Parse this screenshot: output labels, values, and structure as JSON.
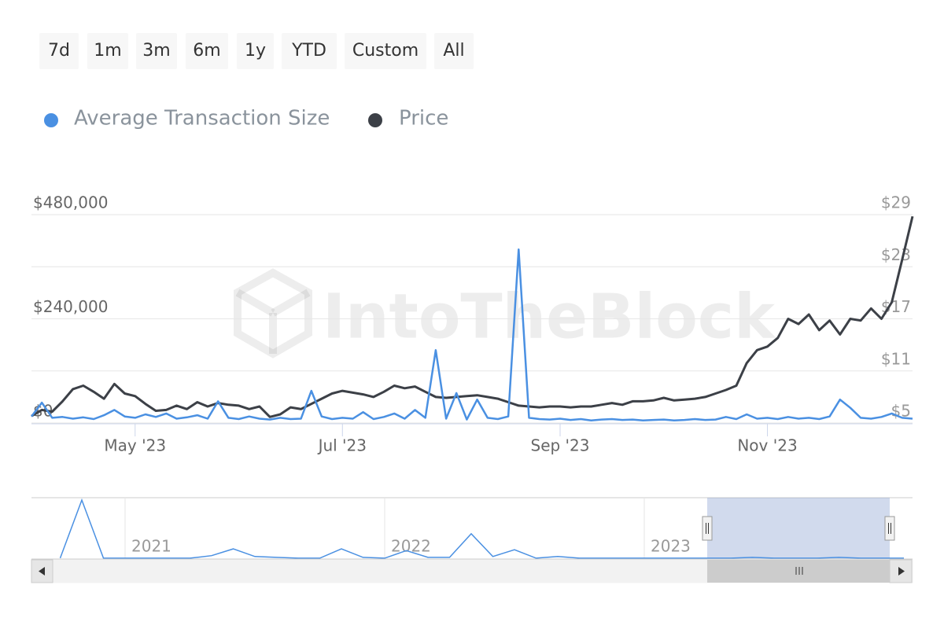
{
  "range_buttons": [
    "7d",
    "1m",
    "3m",
    "6m",
    "1y",
    "YTD",
    "Custom",
    "All"
  ],
  "chart_data": {
    "type": "line",
    "watermark": "IntoTheBlock",
    "categories": [
      null,
      null,
      null,
      null,
      null,
      null,
      null,
      null,
      null,
      null,
      "May '23",
      null,
      null,
      null,
      null,
      null,
      null,
      null,
      null,
      null,
      null,
      null,
      null,
      null,
      null,
      null,
      null,
      null,
      null,
      null,
      "Jul '23",
      null,
      null,
      null,
      null,
      null,
      null,
      null,
      null,
      null,
      null,
      null,
      null,
      null,
      null,
      null,
      null,
      null,
      null,
      null,
      null,
      "Sep '23",
      null,
      null,
      null,
      null,
      null,
      null,
      null,
      null,
      null,
      null,
      null,
      null,
      null,
      null,
      null,
      null,
      null,
      null,
      null,
      "Nov '23",
      null,
      null,
      null,
      null,
      null,
      null,
      null,
      null,
      null,
      null,
      null,
      null,
      null,
      null
    ],
    "series": [
      {
        "name": "Average Transaction Size",
        "color": "#4a90e2",
        "values": [
          15000,
          47000,
          12000,
          14000,
          10000,
          13000,
          9000,
          18000,
          30000,
          15000,
          12000,
          20000,
          14000,
          22000,
          10000,
          13000,
          18000,
          10000,
          50000,
          12000,
          9000,
          15000,
          10000,
          8000,
          12000,
          9000,
          10000,
          74000,
          15000,
          9000,
          12000,
          10000,
          25000,
          9000,
          14000,
          22000,
          10000,
          30000,
          12000,
          168000,
          10000,
          69000,
          8000,
          54000,
          12000,
          9000,
          15000,
          400000,
          12000,
          9000,
          8000,
          10000,
          7000,
          9000,
          6000,
          8000,
          9000,
          7000,
          8000,
          6000,
          7000,
          8000,
          6000,
          7000,
          9000,
          7000,
          8000,
          14000,
          9000,
          20000,
          10000,
          12000,
          9000,
          14000,
          10000,
          12000,
          9000,
          15000,
          54000,
          35000,
          12000,
          10000,
          14000,
          22000,
          12000,
          10000
        ]
      },
      {
        "name": "Price",
        "color": "#3c4047",
        "axis": "y2",
        "values": [
          5.8,
          6.5,
          6.3,
          7.5,
          8.9,
          9.3,
          8.6,
          7.8,
          9.5,
          8.4,
          8.1,
          7.2,
          6.4,
          6.5,
          7.0,
          6.6,
          7.4,
          6.9,
          7.3,
          7.1,
          7.0,
          6.6,
          6.9,
          5.7,
          6.0,
          6.8,
          6.6,
          7.2,
          7.8,
          8.4,
          8.7,
          8.5,
          8.3,
          8.0,
          8.6,
          9.3,
          9.0,
          9.2,
          8.6,
          8.0,
          7.9,
          8.0,
          8.1,
          8.2,
          8.0,
          7.8,
          7.4,
          7.0,
          6.9,
          6.8,
          6.9,
          6.9,
          6.8,
          6.9,
          6.9,
          7.1,
          7.3,
          7.1,
          7.5,
          7.5,
          7.6,
          7.9,
          7.6,
          7.7,
          7.8,
          8.0,
          8.4,
          8.8,
          9.3,
          11.9,
          13.4,
          13.8,
          14.8,
          17.0,
          16.4,
          17.5,
          15.7,
          16.8,
          15.2,
          17.0,
          16.8,
          18.2,
          17.0,
          18.9,
          23.8,
          28.8
        ]
      }
    ],
    "ylim": [
      0,
      480000
    ],
    "yticks": [
      {
        "value": 0,
        "label": "$0"
      },
      {
        "value": 240000,
        "label": "$240,000"
      },
      {
        "value": 480000,
        "label": "$480,000"
      }
    ],
    "y2lim": [
      5,
      29
    ],
    "y2ticks": [
      {
        "value": 5,
        "label": "$5"
      },
      {
        "value": 11,
        "label": "$11"
      },
      {
        "value": 17,
        "label": "$17"
      },
      {
        "value": 23,
        "label": "$23"
      },
      {
        "value": 29,
        "label": "$29"
      }
    ],
    "grid": true,
    "legend": "top-left",
    "navigator": {
      "color": "#4a90e2",
      "categories": [
        null,
        null,
        null,
        null,
        "2021",
        null,
        null,
        null,
        null,
        null,
        null,
        null,
        null,
        null,
        null,
        null,
        "2022",
        null,
        null,
        null,
        null,
        null,
        null,
        null,
        null,
        null,
        null,
        null,
        "2023",
        null,
        null,
        null,
        null,
        null,
        null,
        null,
        null,
        null,
        null,
        null,
        null
      ],
      "values": [
        null,
        28000,
        1960000,
        28000,
        28000,
        28000,
        28000,
        28000,
        112000,
        336000,
        84000,
        56000,
        28000,
        28000,
        336000,
        56000,
        28000,
        280000,
        56000,
        56000,
        840000,
        84000,
        308000,
        28000,
        84000,
        28000,
        28000,
        28000,
        28000,
        28000,
        28000,
        28000,
        28000,
        56000,
        28000,
        28000,
        28000,
        56000,
        28000,
        28000,
        28000
      ]
    }
  }
}
